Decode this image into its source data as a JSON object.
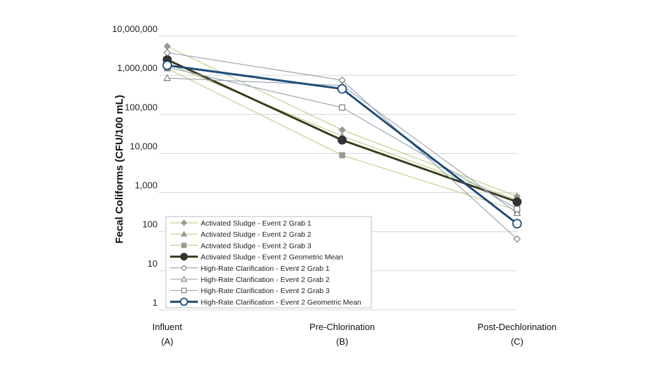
{
  "chart_data": {
    "type": "line",
    "title": "",
    "ylabel": "Fecal Coliforms (CFU/100 mL)",
    "xlabel": "",
    "yscale": "log",
    "ylim": [
      1,
      10000000
    ],
    "grid": true,
    "legend_position": "bottom-center",
    "yticks": [
      {
        "value": 1,
        "label": "1"
      },
      {
        "value": 10,
        "label": "10"
      },
      {
        "value": 100,
        "label": "100"
      },
      {
        "value": 1000,
        "label": "1,000"
      },
      {
        "value": 10000,
        "label": "10,000"
      },
      {
        "value": 100000,
        "label": "100,000"
      },
      {
        "value": 1000000,
        "label": "1,000,000"
      },
      {
        "value": 10000000,
        "label": "10,000,000"
      }
    ],
    "categories": [
      {
        "line1": "Influent",
        "line2": "(A)"
      },
      {
        "line1": "Pre-Chlorination",
        "line2": "(B)"
      },
      {
        "line1": "Post-Dechlorination",
        "line2": "(C)"
      }
    ],
    "series": [
      {
        "name": "Activated Sludge - Event 2 Grab 1",
        "values": [
          5500000,
          40000,
          800
        ],
        "color": "#b5c97a",
        "marker": "diamond",
        "marker_color": "#999999",
        "filled": true,
        "width": 1
      },
      {
        "name": "Activated Sludge - Event 2 Grab 2",
        "values": [
          2000000,
          28000,
          650
        ],
        "color": "#b5c97a",
        "marker": "triangle",
        "marker_color": "#999999",
        "filled": true,
        "width": 1
      },
      {
        "name": "Activated Sludge - Event 2 Grab 3",
        "values": [
          1500000,
          9000,
          350
        ],
        "color": "#b5c97a",
        "marker": "square",
        "marker_color": "#999999",
        "filled": true,
        "width": 1
      },
      {
        "name": "Activated Sludge - Event 2 Geometric Mean",
        "values": [
          2500000,
          22000,
          580
        ],
        "color": "#3d3a1e",
        "marker": "circle",
        "marker_color": "#333333",
        "filled": true,
        "width": 3
      },
      {
        "name": "High-Rate Clarification - Event 2 Grab 1",
        "values": [
          3800000,
          750000,
          65
        ],
        "color": "#8a96a8",
        "marker": "diamond",
        "marker_color": "#777777",
        "filled": false,
        "width": 1
      },
      {
        "name": "High-Rate Clarification - Event 2 Grab 2",
        "values": [
          850000,
          550000,
          300
        ],
        "color": "#8a96a8",
        "marker": "triangle",
        "marker_color": "#777777",
        "filled": false,
        "width": 1
      },
      {
        "name": "High-Rate Clarification - Event 2 Grab 3",
        "values": [
          1600000,
          150000,
          380
        ],
        "color": "#8a96a8",
        "marker": "square",
        "marker_color": "#777777",
        "filled": false,
        "width": 1
      },
      {
        "name": "High-Rate Clarification - Event 2 Geometric Mean",
        "values": [
          1800000,
          450000,
          160
        ],
        "color": "#1f4e79",
        "marker": "circle",
        "marker_color": "#1f4e79",
        "filled": false,
        "width": 3
      }
    ]
  }
}
